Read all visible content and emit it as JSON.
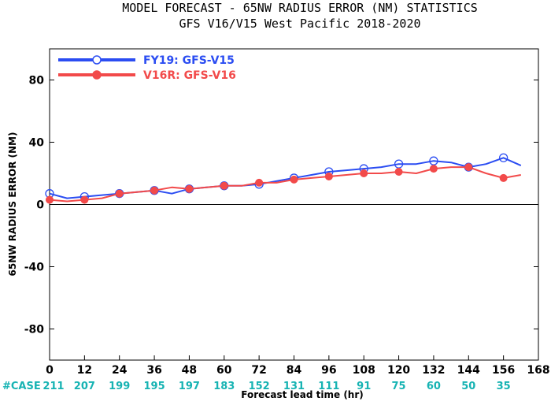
{
  "chart_data": {
    "type": "line",
    "title": "MODEL FORECAST - 65NW RADIUS ERROR (NM) STATISTICS",
    "subtitle": "GFS V16/V15 West Pacific 2018-2020",
    "xlabel": "Forecast lead time (hr)",
    "ylabel": "65NW RADIUS ERROR (NM)",
    "xlim": [
      0,
      168
    ],
    "ylim": [
      -100,
      100
    ],
    "x_ticks": [
      "0",
      "12",
      "24",
      "36",
      "48",
      "60",
      "72",
      "84",
      "96",
      "108",
      "120",
      "132",
      "144",
      "156",
      "168"
    ],
    "y_ticks": [
      "-80",
      "-40",
      "0",
      "40",
      "80"
    ],
    "y_tick_values": [
      -80,
      -40,
      0,
      40,
      80
    ],
    "zero_line": true,
    "legend_position": "top-left",
    "series": [
      {
        "name": "FY19: GFS-V15",
        "color": "#2b4df2",
        "marker": "open-circle",
        "x": [
          0,
          6,
          12,
          18,
          24,
          30,
          36,
          42,
          48,
          54,
          60,
          66,
          72,
          78,
          84,
          90,
          96,
          102,
          108,
          114,
          120,
          126,
          132,
          138,
          144,
          150,
          156,
          162
        ],
        "y": [
          7,
          4,
          5,
          6,
          7,
          8,
          9,
          7,
          10,
          11,
          12,
          12,
          13,
          15,
          17,
          19,
          21,
          22,
          23,
          24,
          26,
          26,
          28,
          27,
          24,
          26,
          30,
          25
        ],
        "marker_x": [
          0,
          12,
          24,
          36,
          48,
          60,
          72,
          84,
          96,
          108,
          120,
          132,
          144,
          156
        ]
      },
      {
        "name": "V16R: GFS-V16",
        "color": "#f24a4a",
        "marker": "filled-circle",
        "x": [
          0,
          6,
          12,
          18,
          24,
          30,
          36,
          42,
          48,
          54,
          60,
          66,
          72,
          78,
          84,
          90,
          96,
          102,
          108,
          114,
          120,
          126,
          132,
          138,
          144,
          150,
          156,
          162
        ],
        "y": [
          3,
          2,
          3,
          4,
          7,
          8,
          9,
          11,
          10,
          11,
          12,
          12,
          14,
          14,
          16,
          17,
          18,
          19,
          20,
          20,
          21,
          20,
          23,
          24,
          24,
          20,
          17,
          19
        ],
        "marker_x": [
          0,
          12,
          24,
          36,
          48,
          60,
          72,
          84,
          96,
          108,
          120,
          132,
          144,
          156
        ]
      }
    ],
    "case_label": "#CASE",
    "case_label_color": "#17b3b3",
    "case_x": [
      0,
      12,
      24,
      36,
      48,
      60,
      72,
      84,
      96,
      108,
      120,
      132,
      144,
      156
    ],
    "case_counts": [
      "211",
      "207",
      "199",
      "195",
      "197",
      "183",
      "152",
      "131",
      "111",
      "91",
      "75",
      "60",
      "50",
      "35"
    ]
  }
}
